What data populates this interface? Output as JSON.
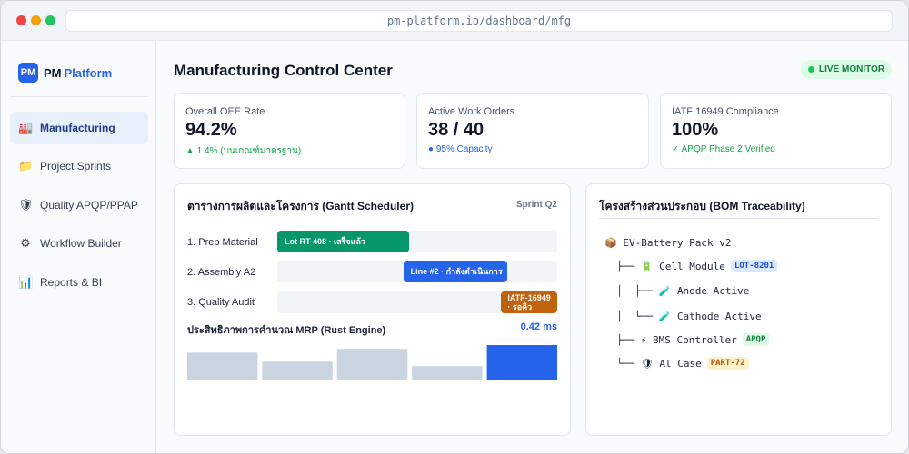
{
  "browser": {
    "url": "pm-platform.io/dashboard/mfg"
  },
  "sidebar": {
    "brand_logo": "PM",
    "brand_name": "PM",
    "brand_accent": "Platform",
    "items": [
      {
        "label": "Manufacturing",
        "icon": "factory-icon",
        "glyph": "🏭"
      },
      {
        "label": "Project Sprints",
        "icon": "folder-icon",
        "glyph": "📁"
      },
      {
        "label": "Quality APQP/PPAP",
        "icon": "shield-icon",
        "glyph": "🛡"
      },
      {
        "label": "Workflow Builder",
        "icon": "gear-icon",
        "glyph": "⚙"
      },
      {
        "label": "Reports & BI",
        "icon": "bar-chart-icon",
        "glyph": "📊"
      }
    ]
  },
  "header": {
    "title": "Manufacturing Control Center",
    "live_badge": "LIVE MONITOR"
  },
  "kpis": [
    {
      "label": "Overall OEE Rate",
      "value": "94.2%",
      "sub": "▲ 1.4% (บนเกณฑ์มาตรฐาน)"
    },
    {
      "label": "Active Work Orders",
      "value": "38 / 40",
      "sub": "● 95% Capacity"
    },
    {
      "label": "IATF 16949 Compliance",
      "value": "100%",
      "sub": "✓ APQP Phase 2 Verified"
    }
  ],
  "gantt": {
    "title": "ตารางการผลิตและโครงการ (Gantt Scheduler)",
    "sprint": "Sprint Q2",
    "rows": [
      {
        "label": "1. Prep Material",
        "bar": "Lot RT-408 · เสร็จแล้ว",
        "start": 0.0,
        "end": 0.47,
        "status": "done"
      },
      {
        "label": "2. Assembly A2",
        "bar": "Line #2 · กำลังดำเนินการ",
        "start": 0.45,
        "end": 0.82,
        "status": "in-progress"
      },
      {
        "label": "3. Quality Audit",
        "bar": "IATF-16949 · รอคิว",
        "start": 0.8,
        "end": 1.0,
        "status": "queued"
      }
    ],
    "perf_label": "ประสิทธิภาพการคำนวณ MRP (Rust Engine)",
    "perf_value": "0.42 ms",
    "bars": [
      0.78,
      0.52,
      0.89,
      0.39,
      1.0
    ]
  },
  "bom": {
    "title": "โครงสร้างส่วนประกอบ (BOM Traceability)",
    "root": {
      "glyph": "📦",
      "text": "EV-Battery Pack v2"
    },
    "cell": {
      "glyph": "🔋",
      "text": "Cell Module",
      "tag": "LOT-8201"
    },
    "anode": {
      "glyph": "🧪",
      "text": "Anode Active"
    },
    "cathode": {
      "glyph": "🧪",
      "text": "Cathode Active"
    },
    "bms": {
      "glyph": "⚡",
      "text": "BMS Controller",
      "tag": "APQP"
    },
    "case": {
      "glyph": "🛡",
      "text": "Al Case",
      "tag": "PART-72"
    }
  },
  "colors": {
    "accent": "#2563eb",
    "success": "#059669",
    "warning": "#c2620e",
    "muted_bar": "#cbd5e1"
  }
}
